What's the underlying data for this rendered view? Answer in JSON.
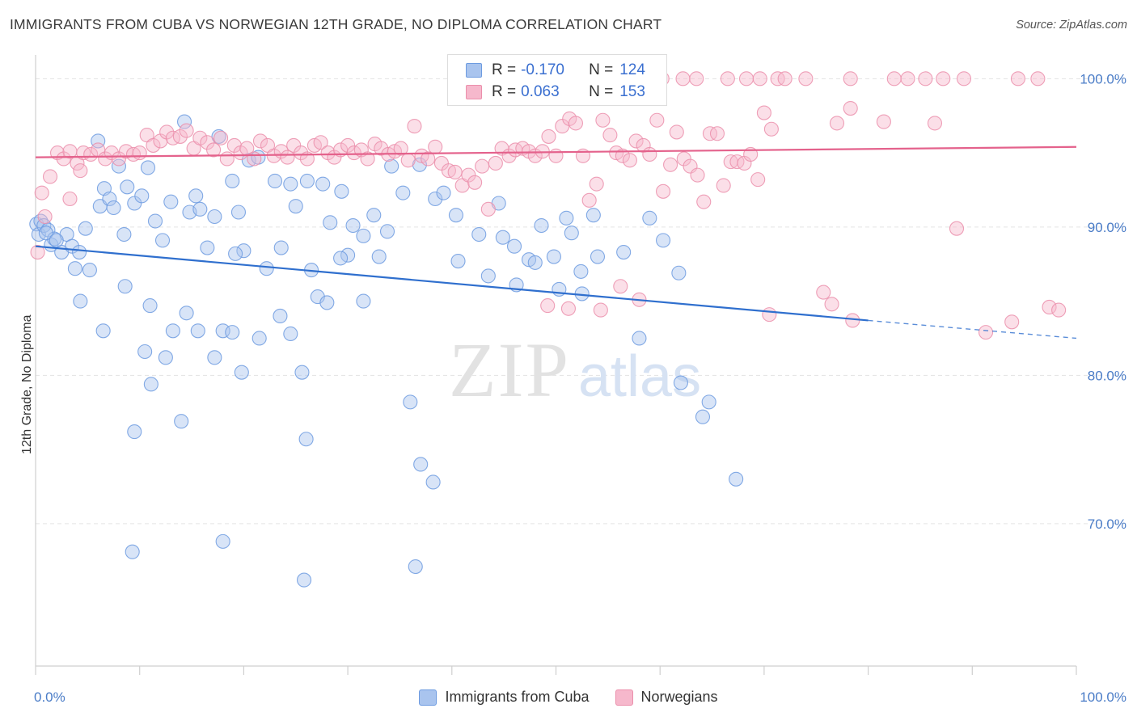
{
  "title": "IMMIGRANTS FROM CUBA VS NORWEGIAN 12TH GRADE, NO DIPLOMA CORRELATION CHART",
  "source": "Source: ZipAtlas.com",
  "watermark": {
    "zip": "ZIP",
    "atlas": "atlas"
  },
  "colors": {
    "cuba_fill": "#a9c4ee",
    "cuba_stroke": "#6d9be0",
    "cuba_line": "#2f6fce",
    "norw_fill": "#f6b8cc",
    "norw_stroke": "#eb8fab",
    "norw_line": "#e4628c",
    "axis_text": "#4a7cc7",
    "grid": "#e3e3e3"
  },
  "legend": {
    "r_label": "R =",
    "n_label": "N =",
    "rows": [
      {
        "r": "-0.170",
        "n": "124"
      },
      {
        "r": "0.063",
        "n": "153"
      }
    ]
  },
  "bottom_legend": [
    "Immigrants from Cuba",
    "Norwegians"
  ],
  "chart_data": {
    "type": "scatter",
    "title": "IMMIGRANTS FROM CUBA VS NORWEGIAN 12TH GRADE, NO DIPLOMA CORRELATION CHART",
    "ylabel": "12th Grade, No Diploma",
    "xlabel": "",
    "x_tick_labels": [
      "0.0%",
      "100.0%"
    ],
    "y_tick_labels": [
      "100.0%",
      "90.0%",
      "80.0%",
      "70.0%"
    ],
    "y_ticks": [
      100,
      90,
      80,
      70
    ],
    "xlim": [
      0,
      100
    ],
    "ylim": [
      60.4,
      101.6
    ],
    "grid": true,
    "legend_position": "top-center",
    "series": [
      {
        "name": "Immigrants from Cuba",
        "R": -0.17,
        "N": 124,
        "trend": {
          "x0": 0,
          "y0": 88.7,
          "x1": 80,
          "y1": 83.7,
          "dashed_to_x": 100,
          "dashed_to_y": 82.5
        },
        "points": [
          [
            0.1,
            90.2
          ],
          [
            0.3,
            89.5
          ],
          [
            0.5,
            90.4
          ],
          [
            0.8,
            90.1
          ],
          [
            1.2,
            89.8
          ],
          [
            1.5,
            88.8
          ],
          [
            1.8,
            89.2
          ],
          [
            2.5,
            88.3
          ],
          [
            3.0,
            89.5
          ],
          [
            3.5,
            88.7
          ],
          [
            4.2,
            88.3
          ],
          [
            4.8,
            89.9
          ],
          [
            1.0,
            89.6
          ],
          [
            2.0,
            89.1
          ],
          [
            3.8,
            87.2
          ],
          [
            5.2,
            87.1
          ],
          [
            6.0,
            95.8
          ],
          [
            6.2,
            91.4
          ],
          [
            6.6,
            92.6
          ],
          [
            7.1,
            91.9
          ],
          [
            7.5,
            91.3
          ],
          [
            8.0,
            94.1
          ],
          [
            8.5,
            89.5
          ],
          [
            8.8,
            92.7
          ],
          [
            9.5,
            91.6
          ],
          [
            10.2,
            92.1
          ],
          [
            10.8,
            94.0
          ],
          [
            11.5,
            90.4
          ],
          [
            12.2,
            89.1
          ],
          [
            13.0,
            91.7
          ],
          [
            14.3,
            97.1
          ],
          [
            14.8,
            91.0
          ],
          [
            15.4,
            92.1
          ],
          [
            15.8,
            91.2
          ],
          [
            16.5,
            88.6
          ],
          [
            17.2,
            90.7
          ],
          [
            17.6,
            96.1
          ],
          [
            18.9,
            93.1
          ],
          [
            19.5,
            91.0
          ],
          [
            20.0,
            88.4
          ],
          [
            19.2,
            88.2
          ],
          [
            20.5,
            94.5
          ],
          [
            21.4,
            94.7
          ],
          [
            22.2,
            87.2
          ],
          [
            23.0,
            93.1
          ],
          [
            23.6,
            88.6
          ],
          [
            24.5,
            92.9
          ],
          [
            25.0,
            91.4
          ],
          [
            26.1,
            93.1
          ],
          [
            26.5,
            87.1
          ],
          [
            27.6,
            92.9
          ],
          [
            28.3,
            90.3
          ],
          [
            29.4,
            92.4
          ],
          [
            30.0,
            88.1
          ],
          [
            30.5,
            90.1
          ],
          [
            31.5,
            89.4
          ],
          [
            32.5,
            90.8
          ],
          [
            33.0,
            88.0
          ],
          [
            33.8,
            89.7
          ],
          [
            34.2,
            94.1
          ],
          [
            35.3,
            92.3
          ],
          [
            36.9,
            94.2
          ],
          [
            38.4,
            91.9
          ],
          [
            39.2,
            92.3
          ],
          [
            40.4,
            90.8
          ],
          [
            40.6,
            87.7
          ],
          [
            42.6,
            89.5
          ],
          [
            43.5,
            86.7
          ],
          [
            44.9,
            89.3
          ],
          [
            44.5,
            91.6
          ],
          [
            46.0,
            88.7
          ],
          [
            46.2,
            86.1
          ],
          [
            47.4,
            87.8
          ],
          [
            48.0,
            87.6
          ],
          [
            48.6,
            90.1
          ],
          [
            49.8,
            88.0
          ],
          [
            50.3,
            85.8
          ],
          [
            51.5,
            89.6
          ],
          [
            51.0,
            90.6
          ],
          [
            52.4,
            87.0
          ],
          [
            52.5,
            85.5
          ],
          [
            53.6,
            90.8
          ],
          [
            54.0,
            88.0
          ],
          [
            56.5,
            88.3
          ],
          [
            58.0,
            82.5
          ],
          [
            59.0,
            90.6
          ],
          [
            60.3,
            89.1
          ],
          [
            61.8,
            86.9
          ],
          [
            4.3,
            85.0
          ],
          [
            6.5,
            83.0
          ],
          [
            8.6,
            86.0
          ],
          [
            10.5,
            81.6
          ],
          [
            11.1,
            79.4
          ],
          [
            12.5,
            81.2
          ],
          [
            13.2,
            83.0
          ],
          [
            14.5,
            84.2
          ],
          [
            15.6,
            83.0
          ],
          [
            17.2,
            81.2
          ],
          [
            18.0,
            83.0
          ],
          [
            18.9,
            82.9
          ],
          [
            19.8,
            80.2
          ],
          [
            21.5,
            82.5
          ],
          [
            23.5,
            84.0
          ],
          [
            24.5,
            82.8
          ],
          [
            25.6,
            80.2
          ],
          [
            27.1,
            85.3
          ],
          [
            28.0,
            84.9
          ],
          [
            29.3,
            87.9
          ],
          [
            31.5,
            85.0
          ],
          [
            36.0,
            78.2
          ],
          [
            37.0,
            74.0
          ],
          [
            38.2,
            72.8
          ],
          [
            36.5,
            67.1
          ],
          [
            26.0,
            75.7
          ],
          [
            14.0,
            76.9
          ],
          [
            9.5,
            76.2
          ],
          [
            9.3,
            68.1
          ],
          [
            18.0,
            68.8
          ],
          [
            25.8,
            66.2
          ],
          [
            62.0,
            79.5
          ],
          [
            64.7,
            78.2
          ],
          [
            64.1,
            77.2
          ],
          [
            67.3,
            73.0
          ],
          [
            11.0,
            84.7
          ]
        ]
      },
      {
        "name": "Norwegians",
        "R": 0.063,
        "N": 153,
        "trend": {
          "x0": 0,
          "y0": 94.7,
          "x1": 100,
          "y1": 95.4
        },
        "points": [
          [
            0.2,
            88.3
          ],
          [
            0.6,
            92.3
          ],
          [
            1.4,
            93.4
          ],
          [
            2.1,
            95.0
          ],
          [
            2.7,
            94.6
          ],
          [
            3.3,
            95.1
          ],
          [
            4.0,
            94.3
          ],
          [
            4.6,
            95.0
          ],
          [
            5.3,
            94.9
          ],
          [
            6.0,
            95.2
          ],
          [
            6.7,
            94.6
          ],
          [
            7.3,
            95.0
          ],
          [
            8.0,
            94.6
          ],
          [
            8.7,
            95.1
          ],
          [
            9.4,
            94.9
          ],
          [
            10.0,
            95.0
          ],
          [
            10.7,
            96.2
          ],
          [
            11.3,
            95.5
          ],
          [
            12.0,
            95.8
          ],
          [
            12.6,
            96.4
          ],
          [
            13.2,
            96.0
          ],
          [
            13.9,
            96.1
          ],
          [
            14.5,
            96.5
          ],
          [
            15.2,
            95.3
          ],
          [
            15.8,
            96.0
          ],
          [
            16.5,
            95.7
          ],
          [
            17.1,
            95.2
          ],
          [
            17.8,
            96.0
          ],
          [
            18.4,
            94.6
          ],
          [
            19.1,
            95.5
          ],
          [
            19.7,
            95.0
          ],
          [
            20.3,
            95.3
          ],
          [
            21.0,
            94.6
          ],
          [
            21.6,
            95.8
          ],
          [
            22.3,
            95.5
          ],
          [
            22.9,
            94.8
          ],
          [
            23.6,
            95.1
          ],
          [
            24.2,
            94.7
          ],
          [
            24.8,
            95.5
          ],
          [
            25.5,
            95.0
          ],
          [
            26.1,
            94.6
          ],
          [
            26.8,
            95.5
          ],
          [
            27.4,
            95.7
          ],
          [
            28.1,
            95.0
          ],
          [
            28.7,
            94.7
          ],
          [
            29.3,
            95.2
          ],
          [
            30.0,
            95.5
          ],
          [
            30.6,
            95.0
          ],
          [
            31.3,
            95.2
          ],
          [
            31.9,
            94.6
          ],
          [
            32.6,
            95.6
          ],
          [
            33.2,
            95.3
          ],
          [
            33.9,
            94.9
          ],
          [
            34.5,
            95.1
          ],
          [
            35.1,
            95.3
          ],
          [
            35.8,
            94.5
          ],
          [
            36.4,
            96.8
          ],
          [
            37.1,
            94.8
          ],
          [
            37.7,
            94.6
          ],
          [
            38.4,
            95.4
          ],
          [
            39.0,
            94.3
          ],
          [
            39.7,
            93.8
          ],
          [
            40.3,
            93.7
          ],
          [
            41.0,
            92.8
          ],
          [
            41.6,
            93.5
          ],
          [
            42.2,
            93.0
          ],
          [
            42.9,
            94.1
          ],
          [
            43.5,
            91.2
          ],
          [
            44.2,
            94.3
          ],
          [
            44.8,
            95.3
          ],
          [
            45.5,
            94.8
          ],
          [
            46.1,
            95.2
          ],
          [
            46.8,
            95.3
          ],
          [
            47.4,
            95.1
          ],
          [
            48.0,
            94.8
          ],
          [
            48.7,
            95.1
          ],
          [
            49.3,
            96.1
          ],
          [
            50.0,
            94.8
          ],
          [
            50.6,
            96.8
          ],
          [
            51.3,
            97.3
          ],
          [
            51.9,
            97.0
          ],
          [
            52.6,
            94.8
          ],
          [
            53.2,
            91.8
          ],
          [
            53.9,
            92.9
          ],
          [
            54.5,
            97.2
          ],
          [
            55.2,
            96.2
          ],
          [
            55.8,
            95.0
          ],
          [
            56.4,
            94.8
          ],
          [
            57.1,
            94.5
          ],
          [
            57.7,
            95.8
          ],
          [
            58.4,
            95.5
          ],
          [
            59.0,
            94.9
          ],
          [
            59.7,
            97.2
          ],
          [
            60.3,
            92.4
          ],
          [
            61.0,
            94.2
          ],
          [
            61.6,
            96.4
          ],
          [
            62.3,
            94.6
          ],
          [
            62.9,
            94.1
          ],
          [
            63.6,
            93.5
          ],
          [
            64.2,
            91.7
          ],
          [
            64.8,
            96.3
          ],
          [
            65.5,
            96.3
          ],
          [
            66.1,
            92.8
          ],
          [
            66.8,
            94.4
          ],
          [
            67.4,
            94.4
          ],
          [
            68.1,
            94.3
          ],
          [
            68.7,
            94.9
          ],
          [
            69.4,
            93.2
          ],
          [
            70.0,
            97.7
          ],
          [
            70.7,
            96.6
          ],
          [
            71.3,
            100.0
          ],
          [
            72.0,
            100.0
          ],
          [
            78.3,
            100.0
          ],
          [
            82.5,
            100.0
          ],
          [
            83.8,
            100.0
          ],
          [
            85.5,
            100.0
          ],
          [
            87.2,
            100.0
          ],
          [
            89.2,
            100.0
          ],
          [
            94.4,
            100.0
          ],
          [
            96.3,
            100.0
          ],
          [
            66.5,
            100.0
          ],
          [
            68.3,
            100.0
          ],
          [
            69.6,
            100.0
          ],
          [
            74.0,
            100.0
          ],
          [
            63.5,
            100.0
          ],
          [
            62.2,
            100.0
          ],
          [
            60.2,
            100.0
          ],
          [
            57.5,
            100.0
          ],
          [
            55.0,
            100.0
          ],
          [
            52.5,
            100.0
          ],
          [
            51.0,
            100.0
          ],
          [
            77.0,
            97.0
          ],
          [
            78.3,
            98.0
          ],
          [
            81.5,
            97.1
          ],
          [
            86.4,
            97.0
          ],
          [
            88.5,
            89.9
          ],
          [
            49.2,
            84.7
          ],
          [
            51.2,
            84.5
          ],
          [
            54.3,
            84.4
          ],
          [
            56.2,
            86.0
          ],
          [
            58.0,
            85.1
          ],
          [
            70.5,
            84.1
          ],
          [
            75.7,
            85.6
          ],
          [
            78.5,
            83.7
          ],
          [
            91.3,
            82.9
          ],
          [
            97.4,
            84.6
          ],
          [
            98.3,
            84.4
          ],
          [
            93.8,
            83.6
          ],
          [
            76.5,
            84.8
          ],
          [
            4.3,
            93.8
          ],
          [
            3.3,
            91.9
          ],
          [
            0.9,
            90.7
          ]
        ]
      }
    ]
  }
}
